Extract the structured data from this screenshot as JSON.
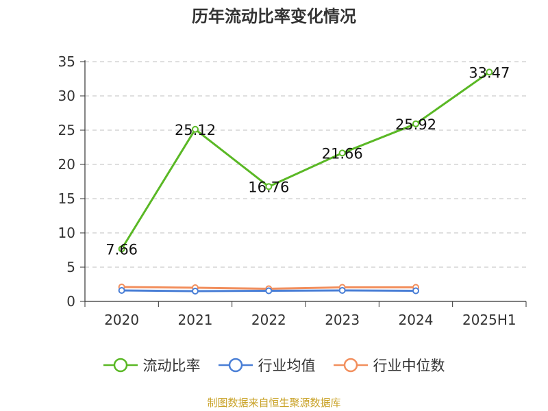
{
  "chart_data": {
    "type": "line",
    "title": "历年流动比率变化情况",
    "categories": [
      "2020",
      "2021",
      "2022",
      "2023",
      "2024",
      "2025H1"
    ],
    "ylim": [
      0,
      35
    ],
    "yticks": [
      0,
      5,
      10,
      15,
      20,
      25,
      30,
      35
    ],
    "grid": true,
    "legend_position": "bottom",
    "series": [
      {
        "name": "流动比率",
        "color": "#5ab825",
        "values": [
          7.66,
          25.12,
          16.76,
          21.66,
          25.92,
          33.47
        ],
        "labels": [
          "7.66",
          "25.12",
          "16.76",
          "21.66",
          "25.92",
          "33.47"
        ],
        "show_labels": true
      },
      {
        "name": "行业均值",
        "color": "#4a7fd6",
        "values": [
          1.6,
          1.5,
          1.55,
          1.6,
          1.55,
          null
        ],
        "show_labels": false
      },
      {
        "name": "行业中位数",
        "color": "#f28f5d",
        "values": [
          2.1,
          2.0,
          1.85,
          2.05,
          2.05,
          null
        ],
        "show_labels": false
      }
    ]
  },
  "footer": {
    "source": "制图数据来自恒生聚源数据库"
  }
}
